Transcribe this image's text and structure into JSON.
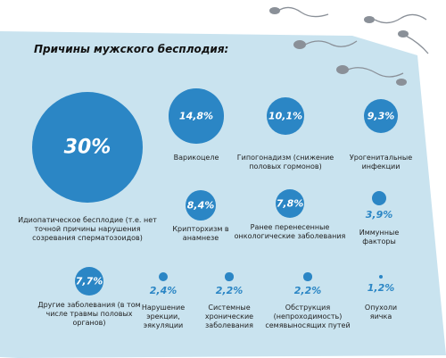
{
  "chart_data": {
    "type": "bubble",
    "title": "Причины мужского бесплодия:",
    "categories": [
      "Идиопатическое бесплодие (т.е. нет точной причины нарушения созревания сперматозоидов)",
      "Варикоцеле",
      "Гипогонадизм (снижение половых гормонов)",
      "Урогенитальные инфекции",
      "Крипторхизм в анамнезе",
      "Ранее перенесенные онкологические заболевания",
      "Иммунные факторы",
      "Другие заболевания (в том числе травмы половых органов)",
      "Нарушение эрекции, эякуляции",
      "Системные хронические заболевания",
      "Обструкция (непроходимость) семявыносящих путей",
      "Опухоли яичка"
    ],
    "values": [
      30,
      14.8,
      10.1,
      9.3,
      8.4,
      7.8,
      3.9,
      7.7,
      2.4,
      2.2,
      2.2,
      1.2
    ],
    "value_labels": [
      "30%",
      "14,8%",
      "10,1%",
      "9,3%",
      "8,4%",
      "7,8%",
      "3,9%",
      "7,7%",
      "2,4%",
      "2,2%",
      "2,2%",
      "1,2%"
    ],
    "color": "#2b86c5"
  }
}
